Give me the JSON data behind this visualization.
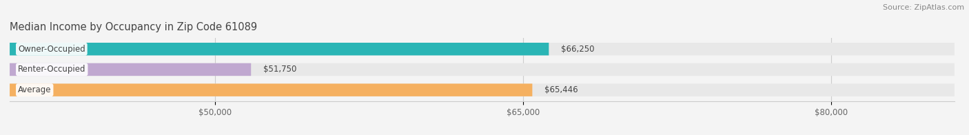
{
  "title": "Median Income by Occupancy in Zip Code 61089",
  "source": "Source: ZipAtlas.com",
  "categories": [
    "Owner-Occupied",
    "Renter-Occupied",
    "Average"
  ],
  "values": [
    66250,
    51750,
    65446
  ],
  "labels": [
    "$66,250",
    "$51,750",
    "$65,446"
  ],
  "bar_colors": [
    "#2ab5b5",
    "#c0a8d0",
    "#f5b060"
  ],
  "bar_bg_color": "#e8e8e8",
  "xlim_min": 40000,
  "xlim_max": 86000,
  "xticks": [
    50000,
    65000,
    80000
  ],
  "xtick_labels": [
    "$50,000",
    "$65,000",
    "$80,000"
  ],
  "title_fontsize": 10.5,
  "source_fontsize": 8,
  "label_fontsize": 8.5,
  "tick_fontsize": 8.5,
  "bar_height": 0.62,
  "background_color": "#f4f4f4",
  "text_color": "#444444",
  "grid_color": "#cccccc"
}
